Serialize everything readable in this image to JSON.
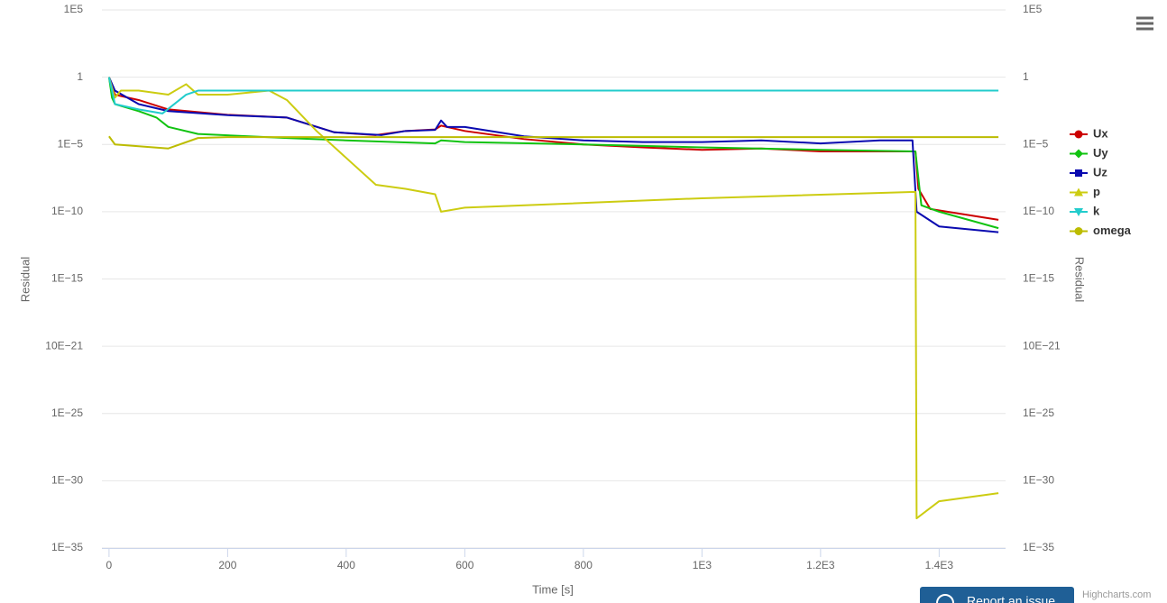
{
  "chart_data": {
    "type": "line",
    "x_label": "Time [s]",
    "y_label": "Residual",
    "y2_label": "Residual",
    "log_y": true,
    "grid": true,
    "legend": "right",
    "xlim": [
      -12,
      1512
    ],
    "xticks": [
      0,
      200,
      400,
      600,
      800,
      {
        "value": 1000,
        "label": "1E3"
      },
      {
        "value": 1200,
        "label": "1.2E3"
      },
      {
        "value": 1400,
        "label": "1.4E3"
      }
    ],
    "ylim": [
      1e-35,
      100000
    ],
    "yticks": [
      {
        "value": 1e-35,
        "label": "1E−35"
      },
      {
        "value": 1e-30,
        "label": "1E−30"
      },
      {
        "value": 1e-25,
        "label": "1E−25"
      },
      {
        "value": 1e-20,
        "label": "10E−21"
      },
      {
        "value": 1e-15,
        "label": "1E−15"
      },
      {
        "value": 1e-10,
        "label": "1E−10"
      },
      {
        "value": 1e-05,
        "label": "1E−5"
      },
      1,
      {
        "value": 100000,
        "label": "1E5"
      }
    ],
    "y2lim": [
      1e-35,
      100000
    ],
    "y2ticks": [
      {
        "value": 1e-35,
        "label": "1E−35"
      },
      {
        "value": 1e-30,
        "label": "1E−30"
      },
      {
        "value": 1e-25,
        "label": "1E−25"
      },
      {
        "value": 1e-20,
        "label": "10E−21"
      },
      {
        "value": 1e-15,
        "label": "1E−15"
      },
      {
        "value": 1e-10,
        "label": "1E−10"
      },
      {
        "value": 1e-05,
        "label": "1E−5"
      },
      1,
      {
        "value": 100000,
        "label": "1E5"
      }
    ],
    "series": [
      {
        "name": "Ux",
        "color": "#cc0000",
        "symbol": "circle",
        "x": [
          0,
          10,
          50,
          100,
          200,
          300,
          380,
          450,
          500,
          550,
          560,
          600,
          700,
          800,
          900,
          1000,
          1100,
          1200,
          1350,
          1360,
          1365,
          1385,
          1500
        ],
        "values": [
          1,
          0.05,
          0.02,
          0.004,
          0.0016,
          0.001,
          8e-05,
          5e-05,
          0.0001,
          0.00013,
          0.00025,
          0.0001,
          2.5e-05,
          1e-05,
          6e-06,
          4e-06,
          5e-06,
          3e-06,
          3e-06,
          3e-06,
          5e-09,
          1.6e-10,
          2.5e-11
        ]
      },
      {
        "name": "Uy",
        "color": "#11c311",
        "symbol": "diamond",
        "x": [
          0,
          5,
          10,
          50,
          80,
          100,
          150,
          300,
          400,
          550,
          560,
          600,
          800,
          1000,
          1200,
          1360,
          1370,
          1400,
          1500
        ],
        "values": [
          1,
          0.03,
          0.01,
          0.003,
          0.001,
          0.0002,
          6e-05,
          3e-05,
          2e-05,
          1.2e-05,
          2e-05,
          1.5e-05,
          1e-05,
          6e-06,
          4e-06,
          3e-06,
          3e-10,
          1e-10,
          6e-12
        ]
      },
      {
        "name": "Uz",
        "color": "#0a0ab0",
        "symbol": "square",
        "x": [
          0,
          10,
          50,
          100,
          200,
          300,
          380,
          460,
          500,
          550,
          560,
          570,
          600,
          700,
          800,
          900,
          1000,
          1100,
          1200,
          1300,
          1355,
          1362,
          1400,
          1500
        ],
        "values": [
          1,
          0.1,
          0.01,
          0.003,
          0.0015,
          0.001,
          8e-05,
          5e-05,
          0.0001,
          0.00012,
          0.0006,
          0.0002,
          0.0002,
          4e-05,
          2e-05,
          1.5e-05,
          1.5e-05,
          2e-05,
          1.2e-05,
          2e-05,
          2e-05,
          1e-10,
          8e-12,
          3e-12
        ]
      },
      {
        "name": "p",
        "color": "#cccc11",
        "symbol": "triangle",
        "x": [
          0,
          10,
          20,
          50,
          100,
          130,
          150,
          200,
          270,
          300,
          350,
          400,
          450,
          500,
          550,
          560,
          600,
          1000,
          1360,
          1362,
          1400,
          1500
        ],
        "values": [
          1,
          0.03,
          0.1,
          0.1,
          0.05,
          0.3,
          0.05,
          0.05,
          0.1,
          0.02,
          0.0001,
          1e-06,
          1e-08,
          5e-09,
          2e-09,
          1e-10,
          2e-10,
          1e-09,
          3e-09,
          1.6e-33,
          3e-32,
          1.2e-31
        ]
      },
      {
        "name": "k",
        "color": "#22cccc",
        "symbol": "triangle-down",
        "x": [
          0,
          10,
          50,
          90,
          130,
          150,
          200,
          1500
        ],
        "values": [
          1,
          0.01,
          0.004,
          0.002,
          0.05,
          0.1,
          0.1,
          0.1
        ]
      },
      {
        "name": "omega",
        "color": "#bcbc00",
        "symbol": "circle",
        "x": [
          0,
          10,
          100,
          150,
          200,
          1500
        ],
        "values": [
          4e-05,
          1e-05,
          5e-06,
          3e-05,
          3.5e-05,
          3.5e-05
        ]
      }
    ]
  },
  "ui": {
    "report_button": "Report an issue",
    "credit": "Highcharts.com"
  }
}
